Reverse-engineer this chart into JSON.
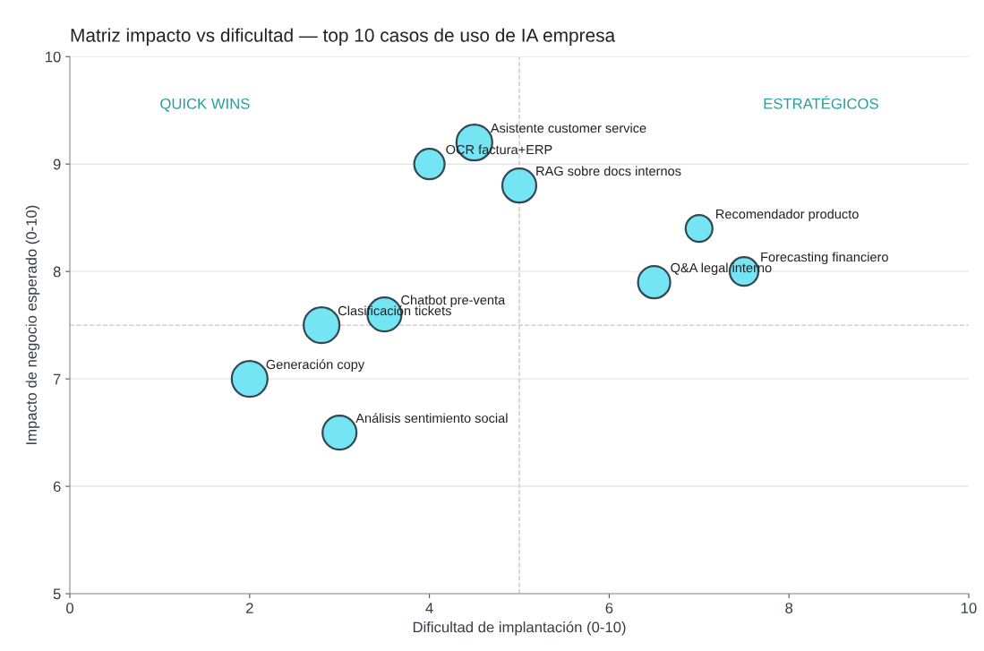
{
  "chart_data": {
    "type": "bubble",
    "title": "Matriz impacto vs dificultad — top 10 casos de uso de IA empresa",
    "xlabel": "Dificultad de implantación (0-10)",
    "ylabel": "Impacto de negocio esperado (0-10)",
    "x": [
      4.5,
      4,
      5,
      7,
      7.5,
      6.5,
      3.5,
      2.8,
      2,
      3
    ],
    "series": [
      {
        "color": "#6ee3f2",
        "values": [
          9.2,
          9,
          8.8,
          8.4,
          8.0,
          7.9,
          7.6,
          7.5,
          7,
          6.5
        ],
        "sizes": [
          1,
          0.72,
          0.9,
          0.56,
          0.64,
          0.81,
          0.9,
          1,
          1,
          0.9
        ]
      }
    ],
    "annotations": [
      {
        "text": "Asistente customer service",
        "x": 4.5,
        "y": 9.2
      },
      {
        "text": "OCR factura+ERP",
        "x": 4,
        "y": 9
      },
      {
        "text": "RAG sobre docs internos",
        "x": 5,
        "y": 8.8
      },
      {
        "text": "Recomendador producto",
        "x": 7,
        "y": 8.4
      },
      {
        "text": "Forecasting financiero",
        "x": 7.5,
        "y": 8.0
      },
      {
        "text": "Q&A legal interno",
        "x": 6.5,
        "y": 7.9
      },
      {
        "text": "Chatbot pre-venta",
        "x": 3.5,
        "y": 7.6
      },
      {
        "text": "Clasificación tickets",
        "x": 2.8,
        "y": 7.5
      },
      {
        "text": "Generación copy",
        "x": 2,
        "y": 7
      },
      {
        "text": "Análisis sentimiento social",
        "x": 3,
        "y": 6.5
      },
      "QUICK WINS",
      "ESTRATÉGICOS"
    ],
    "ref_lines": [
      {
        "axis": "x",
        "value": 5,
        "color": "#c8c8c8",
        "line_style": "dashed"
      },
      {
        "axis": "y",
        "value": 7.5,
        "color": "#c8c8c8",
        "line_style": "dashed"
      }
    ],
    "xlim": [
      0,
      10
    ],
    "ylim": [
      5,
      10
    ],
    "xticks": [
      0,
      2,
      4,
      6,
      8,
      10
    ],
    "yticks": [
      5,
      6,
      7,
      8,
      9,
      10
    ],
    "grid": "y",
    "legend": false
  }
}
